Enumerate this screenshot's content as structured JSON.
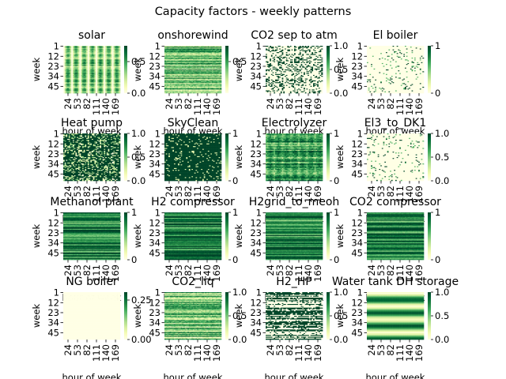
{
  "figure": {
    "title": "Capacity factors - weekly patterns",
    "colormap": "YlGn",
    "colormap_stops": [
      "#ffffe5",
      "#f7fcb9",
      "#d9f0a3",
      "#addd8e",
      "#78c679",
      "#41ab5d",
      "#238443",
      "#006837",
      "#004529"
    ]
  },
  "chart_data": [
    {
      "type": "heatmap",
      "title": "solar",
      "xlabel": "hour of week",
      "ylabel": "week",
      "y_ticks": [
        "1",
        "12",
        "23",
        "34",
        "45"
      ],
      "x_ticks": [
        "24",
        "53",
        "82",
        "111",
        "140",
        "169"
      ],
      "colorbar_ticks": [
        "0.0",
        "0.5"
      ],
      "value_range": [
        0,
        0.75
      ],
      "pattern": "daily-stripes",
      "seed": 3
    },
    {
      "type": "heatmap",
      "title": "onshorewind",
      "xlabel": "hour of week",
      "ylabel": "week",
      "y_ticks": [
        "1",
        "12",
        "23",
        "34",
        "45"
      ],
      "x_ticks": [
        "24",
        "53",
        "82",
        "111",
        "140",
        "169"
      ],
      "colorbar_ticks": [
        "0.5"
      ],
      "value_range": [
        0,
        0.75
      ],
      "pattern": "weekly-bands",
      "seed": 7
    },
    {
      "type": "heatmap",
      "title": "CO2 sep to atm",
      "xlabel": "hour of week",
      "ylabel": "week",
      "y_ticks": [
        "1",
        "12",
        "23",
        "34",
        "45"
      ],
      "x_ticks": [
        "24",
        "53",
        "82",
        "111",
        "140",
        "169"
      ],
      "colorbar_ticks": [
        "0.0",
        "0.5",
        "1.0"
      ],
      "value_range": [
        0,
        1
      ],
      "pattern": "sparse-binary",
      "seed": 11
    },
    {
      "type": "heatmap",
      "title": "El boiler",
      "xlabel": "hour of week",
      "ylabel": "week",
      "y_ticks": [
        "1",
        "12",
        "23",
        "34",
        "45"
      ],
      "x_ticks": [
        "24",
        "53",
        "82",
        "111",
        "140",
        "169"
      ],
      "colorbar_ticks": [
        "0",
        "1"
      ],
      "value_range": [
        0,
        1
      ],
      "pattern": "rare-dark",
      "seed": 13
    },
    {
      "type": "heatmap",
      "title": "Heat pump",
      "xlabel": "hour of week",
      "ylabel": "week",
      "y_ticks": [
        "1",
        "12",
        "23",
        "34",
        "45"
      ],
      "x_ticks": [
        "24",
        "53",
        "82",
        "111",
        "140",
        "169"
      ],
      "colorbar_ticks": [
        "0.0",
        "0.5",
        "1.0"
      ],
      "value_range": [
        0,
        1
      ],
      "pattern": "mostly-dark-daily",
      "seed": 17
    },
    {
      "type": "heatmap",
      "title": "SkyClean",
      "xlabel": "hour of week",
      "ylabel": "week",
      "y_ticks": [
        "1",
        "12",
        "23",
        "34",
        "45"
      ],
      "x_ticks": [
        "24",
        "53",
        "82",
        "111",
        "140",
        "169"
      ],
      "colorbar_ticks": [
        "0",
        "1"
      ],
      "value_range": [
        0,
        1
      ],
      "pattern": "mostly-dark-speckle",
      "seed": 19
    },
    {
      "type": "heatmap",
      "title": "Electrolyzer",
      "xlabel": "hour of week",
      "ylabel": "week",
      "y_ticks": [
        "1",
        "12",
        "23",
        "34",
        "45"
      ],
      "x_ticks": [
        "24",
        "53",
        "82",
        "111",
        "140",
        "169"
      ],
      "colorbar_ticks": [
        "0",
        "1"
      ],
      "value_range": [
        0,
        1
      ],
      "pattern": "mixed-daily",
      "seed": 23
    },
    {
      "type": "heatmap",
      "title": "El3_to_DK1",
      "xlabel": "hour of week",
      "ylabel": "week",
      "y_ticks": [
        "1",
        "12",
        "23",
        "34",
        "45"
      ],
      "x_ticks": [
        "24",
        "53",
        "82",
        "111",
        "140",
        "169"
      ],
      "colorbar_ticks": [
        "0.0",
        "0.5",
        "1.0"
      ],
      "value_range": [
        0,
        1
      ],
      "pattern": "rare-dark",
      "seed": 29
    },
    {
      "type": "heatmap",
      "title": "Methanol plant",
      "xlabel": "hour of week",
      "ylabel": "week",
      "y_ticks": [
        "1",
        "12",
        "23",
        "34",
        "45"
      ],
      "x_ticks": [
        "24",
        "53",
        "82",
        "111",
        "140",
        "169"
      ],
      "colorbar_ticks": [
        "0",
        "1"
      ],
      "value_range": [
        0,
        1
      ],
      "pattern": "weekly-dark-bands",
      "seed": 31
    },
    {
      "type": "heatmap",
      "title": "H2 compressor",
      "xlabel": "hour of week",
      "ylabel": "week",
      "y_ticks": [
        "1",
        "12",
        "23",
        "34",
        "45"
      ],
      "x_ticks": [
        "24",
        "53",
        "82",
        "111",
        "140",
        "169"
      ],
      "colorbar_ticks": [
        "0",
        "1"
      ],
      "value_range": [
        0,
        1
      ],
      "pattern": "weekly-dark-bands",
      "seed": 37
    },
    {
      "type": "heatmap",
      "title": "H2grid_to_meoh",
      "xlabel": "hour of week",
      "ylabel": "week",
      "y_ticks": [
        "1",
        "12",
        "23",
        "34",
        "45"
      ],
      "x_ticks": [
        "24",
        "53",
        "82",
        "111",
        "140",
        "169"
      ],
      "colorbar_ticks": [
        "0",
        "1"
      ],
      "value_range": [
        0,
        1
      ],
      "pattern": "weekly-dark-bands",
      "seed": 41
    },
    {
      "type": "heatmap",
      "title": "CO2 compressor",
      "xlabel": "hour of week",
      "ylabel": "week",
      "y_ticks": [
        "1",
        "12",
        "23",
        "34",
        "45"
      ],
      "x_ticks": [
        "24",
        "53",
        "82",
        "111",
        "140",
        "169"
      ],
      "colorbar_ticks": [
        "0",
        "1"
      ],
      "value_range": [
        0,
        1
      ],
      "pattern": "weekly-dark-bands",
      "seed": 43
    },
    {
      "type": "heatmap",
      "title": "NG boiler",
      "xlabel": "hour of week",
      "ylabel": "week",
      "y_ticks": [
        "1",
        "12",
        "23",
        "34",
        "45"
      ],
      "x_ticks": [
        "24",
        "53",
        "82",
        "111",
        "140",
        "169"
      ],
      "colorbar_ticks": [
        "0.00",
        "0.25"
      ],
      "value_range": [
        0,
        0.3
      ],
      "pattern": "zero",
      "seed": 47
    },
    {
      "type": "heatmap",
      "title": "CO2_liq",
      "xlabel": "hour of week",
      "ylabel": "week",
      "y_ticks": [
        "1",
        "12",
        "23",
        "34",
        "45"
      ],
      "x_ticks": [
        "24",
        "53",
        "82",
        "111",
        "140",
        "169"
      ],
      "colorbar_ticks": [
        "0.0",
        "0.5",
        "1.0"
      ],
      "value_range": [
        0,
        1
      ],
      "pattern": "weekly-bands",
      "seed": 53
    },
    {
      "type": "heatmap",
      "title": "H2_HP",
      "xlabel": "hour of week",
      "ylabel": "week",
      "y_ticks": [
        "1",
        "12",
        "23",
        "34",
        "45"
      ],
      "x_ticks": [
        "24",
        "53",
        "82",
        "111",
        "140",
        "169"
      ],
      "colorbar_ticks": [
        "0.0",
        "0.5",
        "1.0"
      ],
      "value_range": [
        0,
        1
      ],
      "pattern": "weekly-binary",
      "seed": 59
    },
    {
      "type": "heatmap",
      "title": "Water tank DH storage",
      "xlabel": "hour of week",
      "ylabel": "week",
      "y_ticks": [
        "1",
        "12",
        "23",
        "34",
        "45"
      ],
      "x_ticks": [
        "24",
        "53",
        "82",
        "111",
        "140",
        "169"
      ],
      "colorbar_ticks": [
        "0.0",
        "0.5",
        "1.0"
      ],
      "value_range": [
        0,
        1
      ],
      "pattern": "smooth-bands",
      "seed": 61
    }
  ]
}
